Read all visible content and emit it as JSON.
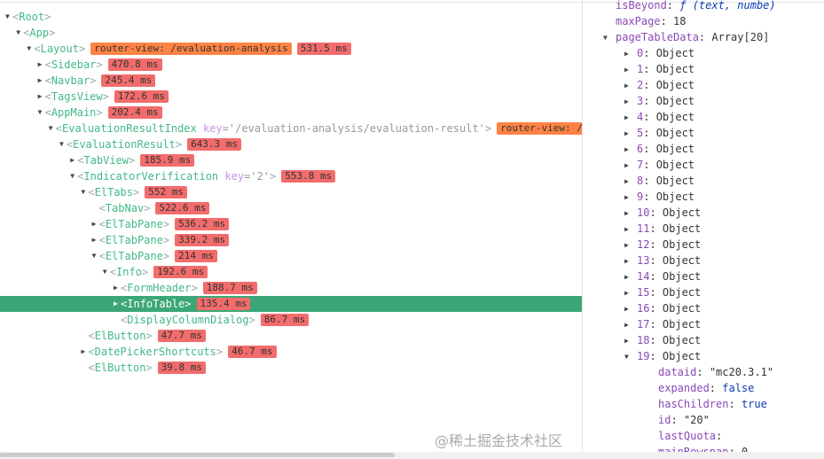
{
  "tree": [
    {
      "level": 0,
      "arrow": "down",
      "name": "Root"
    },
    {
      "level": 1,
      "arrow": "down",
      "name": "App"
    },
    {
      "level": 2,
      "arrow": "down",
      "name": "Layout",
      "router": "router-view: /evaluation-analysis",
      "time": "531.5 ms"
    },
    {
      "level": 3,
      "arrow": "right",
      "name": "Sidebar",
      "time": "470.8 ms"
    },
    {
      "level": 3,
      "arrow": "right",
      "name": "Navbar",
      "time": "245.4 ms"
    },
    {
      "level": 3,
      "arrow": "right",
      "name": "TagsView",
      "time": "172.6 ms"
    },
    {
      "level": 3,
      "arrow": "down",
      "name": "AppMain",
      "time": "202.4 ms"
    },
    {
      "level": 4,
      "arrow": "down",
      "name": "EvaluationResultIndex",
      "key": "'/evaluation-analysis/evaluation-result'",
      "router": "router-view: /eva"
    },
    {
      "level": 5,
      "arrow": "down",
      "name": "EvaluationResult",
      "time": "643.3 ms"
    },
    {
      "level": 6,
      "arrow": "right",
      "name": "TabView",
      "time": "185.9 ms"
    },
    {
      "level": 6,
      "arrow": "down",
      "name": "IndicatorVerification",
      "key": "'2'",
      "time": "553.8 ms"
    },
    {
      "level": 7,
      "arrow": "down",
      "name": "ElTabs",
      "time": "552 ms"
    },
    {
      "level": 8,
      "arrow": "none",
      "name": "TabNav",
      "time": "522.6 ms"
    },
    {
      "level": 8,
      "arrow": "right",
      "name": "ElTabPane",
      "time": "536.2 ms"
    },
    {
      "level": 8,
      "arrow": "right",
      "name": "ElTabPane",
      "time": "339.2 ms"
    },
    {
      "level": 8,
      "arrow": "down",
      "name": "ElTabPane",
      "time": "214 ms"
    },
    {
      "level": 9,
      "arrow": "down",
      "name": "Info",
      "time": "192.6 ms"
    },
    {
      "level": 10,
      "arrow": "right",
      "name": "FormHeader",
      "time": "188.7 ms"
    },
    {
      "level": 10,
      "arrow": "right",
      "name": "InfoTable",
      "time": "135.4 ms",
      "selected": true
    },
    {
      "level": 10,
      "arrow": "none",
      "name": "DisplayColumnDialog",
      "time": "86.7 ms"
    },
    {
      "level": 7,
      "arrow": "none",
      "name": "ElButton",
      "time": "47.7 ms"
    },
    {
      "level": 7,
      "arrow": "right",
      "name": "DatePickerShortcuts",
      "time": "46.7 ms"
    },
    {
      "level": 7,
      "arrow": "none",
      "name": "ElButton",
      "time": "39.8 ms"
    }
  ],
  "state": [
    {
      "indent": 0,
      "arrow": "none",
      "key": "isBeyond",
      "value": "ƒ (text, numbe)",
      "type": "fn"
    },
    {
      "indent": 0,
      "arrow": "none",
      "key": "maxPage",
      "value": "18",
      "type": "num"
    },
    {
      "indent": 0,
      "arrow": "down",
      "key": "pageTableData",
      "value": "Array[20]",
      "type": "obj"
    },
    {
      "indent": 1,
      "arrow": "right",
      "key": "0",
      "value": "Object",
      "type": "obj"
    },
    {
      "indent": 1,
      "arrow": "right",
      "key": "1",
      "value": "Object",
      "type": "obj"
    },
    {
      "indent": 1,
      "arrow": "right",
      "key": "2",
      "value": "Object",
      "type": "obj"
    },
    {
      "indent": 1,
      "arrow": "right",
      "key": "3",
      "value": "Object",
      "type": "obj"
    },
    {
      "indent": 1,
      "arrow": "right",
      "key": "4",
      "value": "Object",
      "type": "obj"
    },
    {
      "indent": 1,
      "arrow": "right",
      "key": "5",
      "value": "Object",
      "type": "obj"
    },
    {
      "indent": 1,
      "arrow": "right",
      "key": "6",
      "value": "Object",
      "type": "obj"
    },
    {
      "indent": 1,
      "arrow": "right",
      "key": "7",
      "value": "Object",
      "type": "obj"
    },
    {
      "indent": 1,
      "arrow": "right",
      "key": "8",
      "value": "Object",
      "type": "obj"
    },
    {
      "indent": 1,
      "arrow": "right",
      "key": "9",
      "value": "Object",
      "type": "obj"
    },
    {
      "indent": 1,
      "arrow": "right",
      "key": "10",
      "value": "Object",
      "type": "obj"
    },
    {
      "indent": 1,
      "arrow": "right",
      "key": "11",
      "value": "Object",
      "type": "obj"
    },
    {
      "indent": 1,
      "arrow": "right",
      "key": "12",
      "value": "Object",
      "type": "obj"
    },
    {
      "indent": 1,
      "arrow": "right",
      "key": "13",
      "value": "Object",
      "type": "obj"
    },
    {
      "indent": 1,
      "arrow": "right",
      "key": "14",
      "value": "Object",
      "type": "obj"
    },
    {
      "indent": 1,
      "arrow": "right",
      "key": "15",
      "value": "Object",
      "type": "obj"
    },
    {
      "indent": 1,
      "arrow": "right",
      "key": "16",
      "value": "Object",
      "type": "obj"
    },
    {
      "indent": 1,
      "arrow": "right",
      "key": "17",
      "value": "Object",
      "type": "obj"
    },
    {
      "indent": 1,
      "arrow": "right",
      "key": "18",
      "value": "Object",
      "type": "obj"
    },
    {
      "indent": 1,
      "arrow": "down",
      "key": "19",
      "value": "Object",
      "type": "obj"
    },
    {
      "indent": 2,
      "arrow": "none",
      "key": "dataid",
      "value": "\"mc20.3.1\"",
      "type": "str"
    },
    {
      "indent": 2,
      "arrow": "none",
      "key": "expanded",
      "value": "false",
      "type": "bool"
    },
    {
      "indent": 2,
      "arrow": "none",
      "key": "hasChildren",
      "value": "true",
      "type": "bool"
    },
    {
      "indent": 2,
      "arrow": "none",
      "key": "id",
      "value": "\"20\"",
      "type": "str"
    },
    {
      "indent": 2,
      "arrow": "none",
      "key": "lastQuota",
      "value": "",
      "type": "str"
    },
    {
      "indent": 2,
      "arrow": "none",
      "key": "mainRowspan",
      "value": "0",
      "type": "num"
    }
  ],
  "watermark": "@稀土掘金技术社区",
  "colors": {
    "selected": "#3ba776",
    "component": "#42b983",
    "time_badge": "#f26c6c",
    "router_badge": "#ff8344"
  }
}
